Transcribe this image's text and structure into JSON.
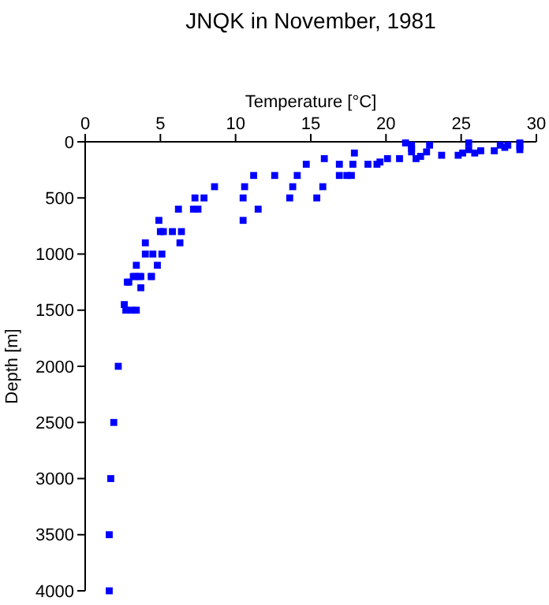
{
  "chart_data": {
    "type": "scatter",
    "title": "JNQK in November, 1981",
    "xlabel": "Temperature [°C]",
    "ylabel": "Depth [m]",
    "xlim": [
      0,
      30
    ],
    "xticks": [
      0,
      5,
      10,
      15,
      20,
      25,
      30
    ],
    "ylim": [
      4000,
      0
    ],
    "yticks": [
      0,
      500,
      1000,
      1500,
      2000,
      2500,
      3000,
      3500,
      4000
    ],
    "marker": "square",
    "grid": false,
    "series": [
      {
        "color": "#0000ff",
        "x": [
          14.7,
          14.1,
          12.6,
          11.2,
          10.6,
          13.8,
          13.6,
          10.5,
          11.5,
          10.5,
          8.6,
          7.9,
          7.3,
          7.5,
          7.2,
          6.2,
          4.9,
          5.0,
          5.2,
          5.8,
          6.4,
          6.3,
          4.0,
          4.0,
          4.5,
          5.1,
          3.4,
          4.8,
          3.2,
          3.7,
          4.4,
          2.8,
          2.9,
          3.3,
          3.6,
          3.7,
          4.4,
          2.6,
          2.7,
          3.1,
          3.4,
          2.2,
          1.9,
          1.7,
          1.6,
          1.6,
          15.4,
          15.8,
          15.9,
          16.9,
          16.9,
          17.4,
          17.7,
          17.8,
          17.9,
          18.8,
          19.4,
          19.6,
          20.1,
          20.9,
          21.3,
          21.7,
          21.7,
          21.7,
          22.0,
          22.3,
          22.7,
          22.9,
          23.7,
          24.8,
          25.1,
          25.5,
          25.5,
          25.9,
          26.3,
          27.2,
          27.6,
          27.9,
          28.1,
          28.9,
          28.9,
          28.9
        ],
        "values": [
          200,
          300,
          300,
          300,
          400,
          400,
          500,
          500,
          600,
          700,
          400,
          500,
          500,
          600,
          600,
          600,
          700,
          800,
          800,
          800,
          800,
          900,
          900,
          1000,
          1000,
          1000,
          1100,
          1100,
          1200,
          1200,
          1200,
          1250,
          1250,
          1200,
          1200,
          1300,
          1200,
          1450,
          1500,
          1500,
          1500,
          2000,
          2500,
          3000,
          3500,
          4000,
          500,
          400,
          150,
          300,
          200,
          300,
          300,
          200,
          100,
          200,
          200,
          180,
          150,
          150,
          10,
          30,
          60,
          90,
          150,
          130,
          90,
          30,
          120,
          120,
          100,
          10,
          70,
          100,
          80,
          80,
          30,
          50,
          30,
          10,
          40,
          70
        ]
      }
    ]
  }
}
